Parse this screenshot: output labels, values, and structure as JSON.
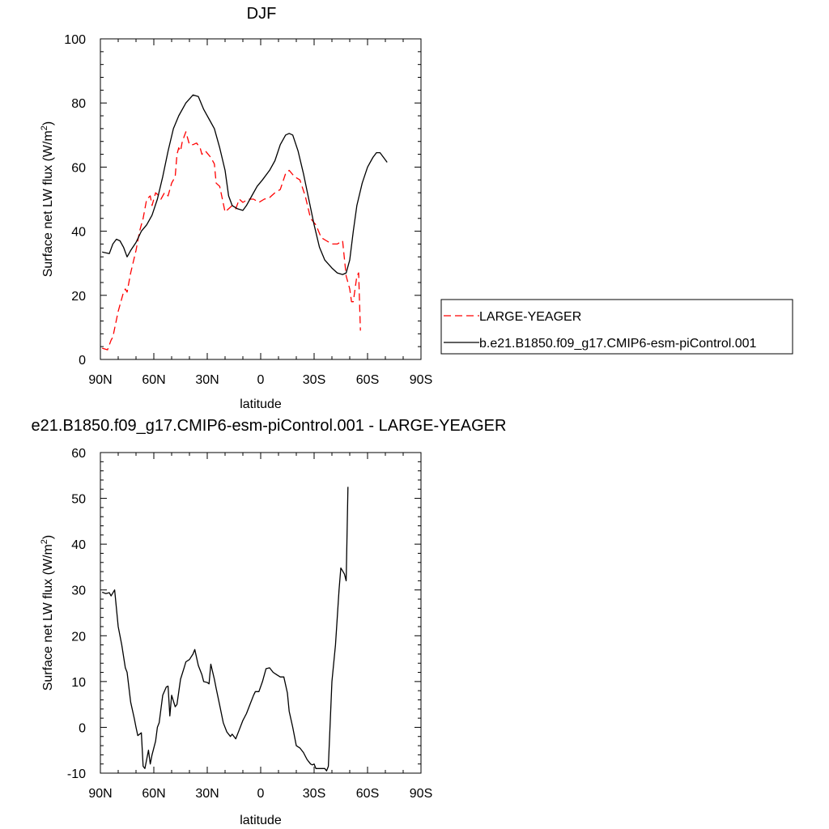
{
  "chart_data": [
    {
      "type": "line",
      "title": "DJF",
      "xlabel": "latitude",
      "ylabel": "Surface net LW flux (W/m",
      "ylabel_sup": "2",
      "ylabel_end": ")",
      "xlim": [
        90,
        -90
      ],
      "ylim": [
        0,
        100
      ],
      "x_ticks": [
        {
          "value": 90,
          "label": "90N"
        },
        {
          "value": 60,
          "label": "60N"
        },
        {
          "value": 30,
          "label": "30N"
        },
        {
          "value": 0,
          "label": "0"
        },
        {
          "value": -30,
          "label": "30S"
        },
        {
          "value": -60,
          "label": "60S"
        },
        {
          "value": -90,
          "label": "90S"
        }
      ],
      "y_ticks": [
        0,
        20,
        40,
        60,
        80,
        100
      ],
      "legend_position": "right",
      "series": [
        {
          "name": "LARGE-YEAGER",
          "color": "#ff0000",
          "dash": "dashed",
          "points": [
            [
              89,
              3.5
            ],
            [
              86,
              3
            ],
            [
              84,
              6
            ],
            [
              83,
              7
            ],
            [
              80,
              15
            ],
            [
              77,
              21
            ],
            [
              76,
              22
            ],
            [
              75,
              21
            ],
            [
              73,
              27
            ],
            [
              70,
              34
            ],
            [
              68,
              40
            ],
            [
              66,
              44
            ],
            [
              64,
              50
            ],
            [
              62,
              51
            ],
            [
              61,
              48
            ],
            [
              59,
              52
            ],
            [
              57,
              51
            ],
            [
              56,
              50
            ],
            [
              54,
              52
            ],
            [
              52,
              51
            ],
            [
              50,
              55
            ],
            [
              48,
              57
            ],
            [
              47,
              64
            ],
            [
              46,
              66
            ],
            [
              45,
              65
            ],
            [
              44,
              68
            ],
            [
              42,
              71
            ],
            [
              40,
              67
            ],
            [
              38,
              67
            ],
            [
              36,
              67.5
            ],
            [
              34,
              66
            ],
            [
              33,
              64
            ],
            [
              31,
              65
            ],
            [
              28,
              63
            ],
            [
              26,
              61
            ],
            [
              25,
              55
            ],
            [
              23,
              54
            ],
            [
              20,
              46
            ],
            [
              18,
              47
            ],
            [
              16,
              48
            ],
            [
              14,
              47
            ],
            [
              12,
              50
            ],
            [
              10,
              49
            ],
            [
              7,
              50
            ],
            [
              4,
              50
            ],
            [
              1,
              49
            ],
            [
              -2,
              50
            ],
            [
              -5,
              50.5
            ],
            [
              -8,
              52
            ],
            [
              -11,
              53
            ],
            [
              -14,
              58
            ],
            [
              -16,
              59
            ],
            [
              -19,
              57
            ],
            [
              -22,
              56
            ],
            [
              -25,
              51
            ],
            [
              -28,
              44
            ],
            [
              -31,
              42
            ],
            [
              -34,
              38
            ],
            [
              -37,
              37
            ],
            [
              -40,
              36
            ],
            [
              -43,
              36
            ],
            [
              -46,
              37
            ],
            [
              -48,
              26
            ],
            [
              -50,
              22
            ],
            [
              -51,
              18
            ],
            [
              -52,
              18
            ],
            [
              -54,
              26
            ],
            [
              -55,
              27
            ],
            [
              -56,
              9
            ]
          ]
        },
        {
          "name": "b.e21.B1850.f09_g17.CMIP6-esm-piControl.001",
          "color": "#000000",
          "dash": "solid",
          "points": [
            [
              89,
              33.5
            ],
            [
              85,
              33
            ],
            [
              83,
              36
            ],
            [
              81,
              37.5
            ],
            [
              79,
              37
            ],
            [
              77,
              35
            ],
            [
              75,
              32
            ],
            [
              73,
              34
            ],
            [
              70,
              36.5
            ],
            [
              67,
              40
            ],
            [
              64,
              42
            ],
            [
              61,
              45
            ],
            [
              58,
              50
            ],
            [
              55,
              57
            ],
            [
              52,
              65
            ],
            [
              49,
              72
            ],
            [
              46,
              76
            ],
            [
              42,
              80
            ],
            [
              38,
              82.5
            ],
            [
              35,
              82
            ],
            [
              32,
              78
            ],
            [
              29,
              75
            ],
            [
              26,
              72
            ],
            [
              23,
              66
            ],
            [
              20,
              59
            ],
            [
              18,
              51
            ],
            [
              16,
              48
            ],
            [
              13,
              47
            ],
            [
              10,
              46.5
            ],
            [
              8,
              48
            ],
            [
              5,
              51
            ],
            [
              2,
              54
            ],
            [
              -1,
              56
            ],
            [
              -5,
              59
            ],
            [
              -8,
              62
            ],
            [
              -11,
              67
            ],
            [
              -14,
              70
            ],
            [
              -16,
              70.5
            ],
            [
              -18,
              70
            ],
            [
              -21,
              65
            ],
            [
              -24,
              58
            ],
            [
              -27,
              50
            ],
            [
              -30,
              42
            ],
            [
              -33,
              35
            ],
            [
              -36,
              31
            ],
            [
              -40,
              28.5
            ],
            [
              -43,
              27
            ],
            [
              -46,
              26.5
            ],
            [
              -48,
              27
            ],
            [
              -50,
              31
            ],
            [
              -52,
              40
            ],
            [
              -54,
              48
            ],
            [
              -57,
              55
            ],
            [
              -60,
              60
            ],
            [
              -63,
              63
            ],
            [
              -65,
              64.5
            ],
            [
              -67,
              64.5
            ],
            [
              -69,
              63
            ],
            [
              -71,
              61.5
            ]
          ]
        }
      ]
    },
    {
      "type": "line",
      "title": "e21.B1850.f09_g17.CMIP6-esm-piControl.001 - LARGE-YEAGER",
      "xlabel": "latitude",
      "ylabel": "Surface net LW flux (W/m",
      "ylabel_sup": "2",
      "ylabel_end": ")",
      "xlim": [
        90,
        -90
      ],
      "ylim": [
        -10,
        60
      ],
      "x_ticks": [
        {
          "value": 90,
          "label": "90N"
        },
        {
          "value": 60,
          "label": "60N"
        },
        {
          "value": 30,
          "label": "30N"
        },
        {
          "value": 0,
          "label": "0"
        },
        {
          "value": -30,
          "label": "30S"
        },
        {
          "value": -60,
          "label": "60S"
        },
        {
          "value": -90,
          "label": "90S"
        }
      ],
      "y_ticks": [
        -10,
        0,
        10,
        20,
        30,
        40,
        50,
        60
      ],
      "series": [
        {
          "color": "#000000",
          "dash": "solid",
          "points": [
            [
              89,
              29.5
            ],
            [
              87,
              29.2
            ],
            [
              85,
              29.4
            ],
            [
              84,
              28.7
            ],
            [
              82,
              30
            ],
            [
              80,
              22
            ],
            [
              78,
              18
            ],
            [
              76,
              13
            ],
            [
              75,
              12
            ],
            [
              73,
              5.5
            ],
            [
              71,
              2
            ],
            [
              70,
              0
            ],
            [
              69,
              -1.8
            ],
            [
              67,
              -1.2
            ],
            [
              66,
              -8.5
            ],
            [
              65,
              -9
            ],
            [
              63,
              -5
            ],
            [
              62,
              -8
            ],
            [
              61,
              -6
            ],
            [
              59,
              -3
            ],
            [
              58,
              0
            ],
            [
              57,
              1
            ],
            [
              55,
              7
            ],
            [
              53,
              8.8
            ],
            [
              52,
              9
            ],
            [
              51,
              2.5
            ],
            [
              50,
              7
            ],
            [
              48,
              4.5
            ],
            [
              47,
              5
            ],
            [
              45,
              10.5
            ],
            [
              43,
              13
            ],
            [
              42,
              14.3
            ],
            [
              40,
              14.8
            ],
            [
              38,
              16
            ],
            [
              37,
              17
            ],
            [
              35,
              13.5
            ],
            [
              33,
              11.5
            ],
            [
              32,
              10
            ],
            [
              30,
              9.8
            ],
            [
              29,
              9.5
            ],
            [
              28,
              13.8
            ],
            [
              26,
              10.5
            ],
            [
              25,
              8.5
            ],
            [
              23,
              4.8
            ],
            [
              21,
              1
            ],
            [
              19,
              -1
            ],
            [
              17,
              -2
            ],
            [
              16,
              -1.5
            ],
            [
              14,
              -2.5
            ],
            [
              12,
              -0.5
            ],
            [
              10,
              1.5
            ],
            [
              8,
              3
            ],
            [
              6,
              5
            ],
            [
              4,
              7
            ],
            [
              3,
              7.8
            ],
            [
              1,
              7.8
            ],
            [
              -1,
              10
            ],
            [
              -3,
              12.8
            ],
            [
              -5,
              13
            ],
            [
              -7,
              12
            ],
            [
              -9,
              11.5
            ],
            [
              -11,
              11
            ],
            [
              -13,
              11
            ],
            [
              -15,
              7.5
            ],
            [
              -16,
              3.5
            ],
            [
              -18,
              0
            ],
            [
              -20,
              -4
            ],
            [
              -22,
              -4.5
            ],
            [
              -24,
              -5.5
            ],
            [
              -26,
              -7
            ],
            [
              -28,
              -8
            ],
            [
              -29,
              -8.2
            ],
            [
              -30,
              -8
            ],
            [
              -31,
              -9
            ],
            [
              -34,
              -9
            ],
            [
              -36,
              -9
            ],
            [
              -37,
              -9.5
            ],
            [
              -38,
              -8.5
            ],
            [
              -40,
              10
            ],
            [
              -42,
              18
            ],
            [
              -44,
              30
            ],
            [
              -45,
              34.8
            ],
            [
              -47,
              33.5
            ],
            [
              -48,
              32
            ],
            [
              -49,
              52.5
            ]
          ]
        }
      ]
    }
  ]
}
